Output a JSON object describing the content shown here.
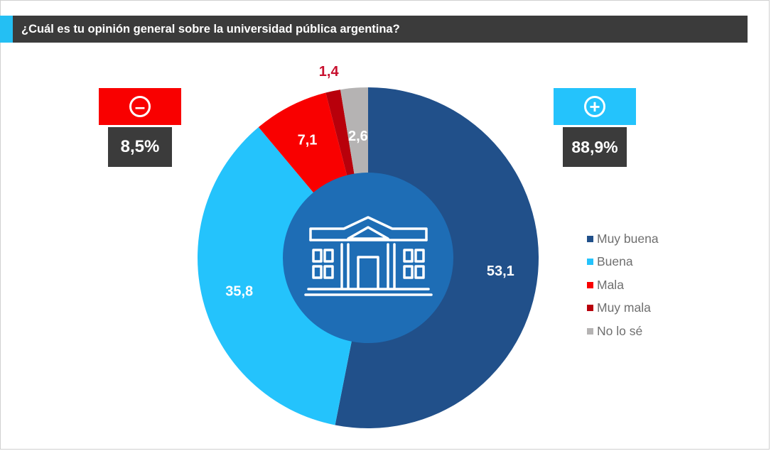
{
  "chart_data": {
    "type": "pie",
    "title": "¿Cuál es tu opinión general sobre la universidad pública argentina?",
    "categories": [
      "Muy buena",
      "Buena",
      "Mala",
      "Muy mala",
      "No lo sé"
    ],
    "values": [
      53.1,
      35.8,
      7.1,
      1.4,
      2.6
    ],
    "value_labels": [
      "53,1",
      "35,8",
      "7,1",
      "1,4",
      "2,6"
    ],
    "colors": [
      "#21508a",
      "#24c3fc",
      "#f90000",
      "#b8000b",
      "#b5b3b3"
    ],
    "legend_position": "right",
    "donut": true
  },
  "summary": {
    "negative": {
      "icon": "minus-circle-icon",
      "value": "8,5%",
      "color": "#f90000"
    },
    "positive": {
      "icon": "plus-circle-icon",
      "value": "88,9%",
      "color": "#24c3fc"
    }
  },
  "center_icon": "university-building-icon",
  "colors": {
    "title_bar": "#3b3b3b",
    "accent": "#24bff3",
    "center_disc": "#1e6db5",
    "summary_box": "#3b3b3b"
  }
}
